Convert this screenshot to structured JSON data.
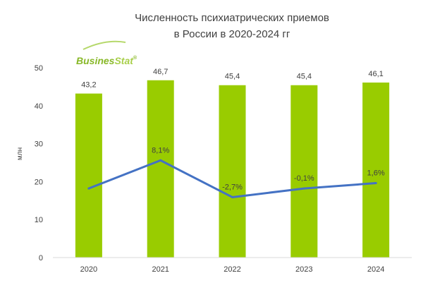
{
  "chart_data": {
    "type": "bar",
    "title_lines": [
      "Численность психиатрических приемов",
      "в России в 2020-2024 гг"
    ],
    "ylabel": "млн",
    "ylim": [
      0,
      50
    ],
    "y_ticks": [
      "0",
      "10",
      "20",
      "30",
      "40",
      "50"
    ],
    "categories": [
      "2020",
      "2021",
      "2022",
      "2023",
      "2024"
    ],
    "series": [
      {
        "type": "bar",
        "values": [
          43.2,
          46.7,
          45.4,
          45.4,
          46.1
        ],
        "labels": [
          "43,2",
          "46,7",
          "45,4",
          "45,4",
          "46,1"
        ],
        "color": "#99cc00"
      },
      {
        "type": "line",
        "values": [
          18.2,
          25.6,
          15.9,
          18.2,
          19.6
        ],
        "labels": [
          "",
          "8,1%",
          "-2,7%",
          "-0,1%",
          "1,6%"
        ],
        "color": "#4472c4"
      }
    ],
    "grid": false,
    "legend": "none"
  },
  "logo": {
    "text_dark": "Busines",
    "text_light": "Stat",
    "mark": "®",
    "color": "#88b828"
  }
}
